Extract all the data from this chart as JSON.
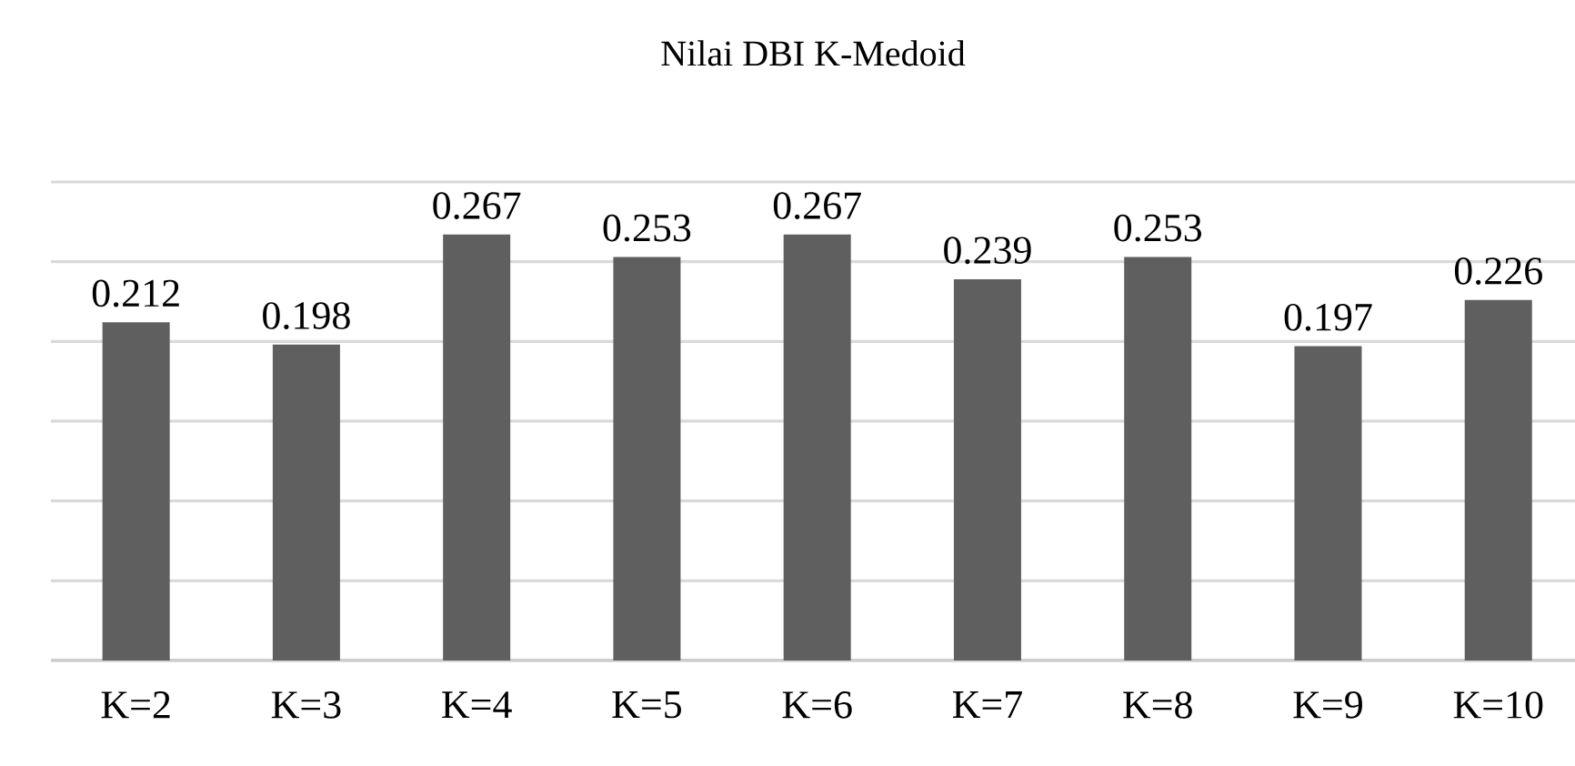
{
  "chart_data": {
    "type": "bar",
    "title": "Nilai DBI K-Medoid",
    "categories": [
      "K=2",
      "K=3",
      "K=4",
      "K=5",
      "K=6",
      "K=7",
      "K=8",
      "K=9",
      "K=10"
    ],
    "values": [
      0.212,
      0.198,
      0.267,
      0.253,
      0.267,
      0.239,
      0.253,
      0.197,
      0.226
    ],
    "color": "#5f5f5f",
    "data_labels": true,
    "grid": "y",
    "tick_labels": "x",
    "ylim": [
      0,
      0.3
    ],
    "yticks": [
      {
        "value": 0,
        "label": null
      },
      {
        "value": 0.05,
        "label": null
      },
      {
        "value": 0.1,
        "label": null
      },
      {
        "value": 0.15,
        "label": null
      },
      {
        "value": 0.2,
        "label": null
      },
      {
        "value": 0.25,
        "label": null
      },
      {
        "value": 0.3,
        "label": null
      }
    ]
  }
}
